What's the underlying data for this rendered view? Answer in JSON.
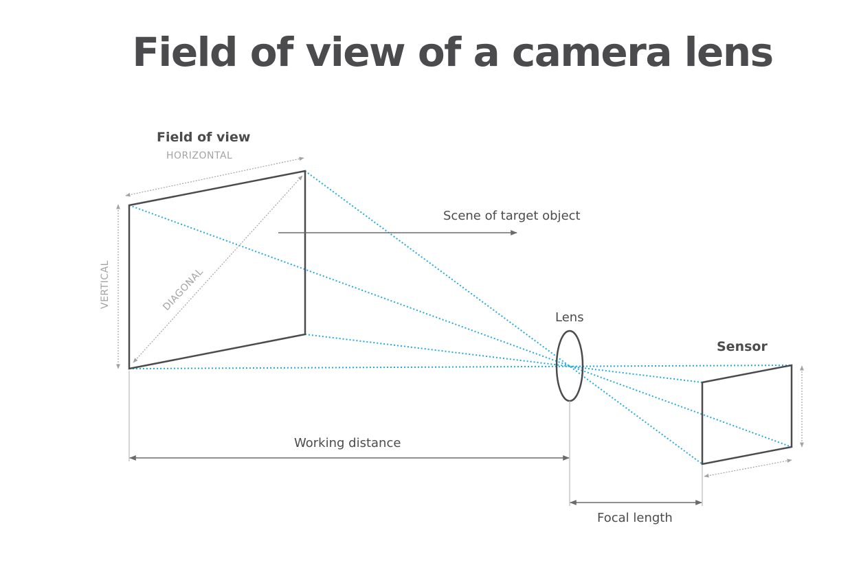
{
  "title": "Field of view of a camera lens",
  "labels": {
    "field_of_view": "Field of view",
    "horizontal": "HORIZONTAL",
    "vertical": "VERTICAL",
    "diagonal": "DIAGONAL",
    "scene": "Scene of target object",
    "lens": "Lens",
    "sensor": "Sensor",
    "working_distance": "Working distance",
    "focal_length": "Focal length"
  },
  "colors": {
    "text": "#4b4b4d",
    "light_rays": "#1ea9e1",
    "dimension_lines": "#a3a3a5"
  }
}
